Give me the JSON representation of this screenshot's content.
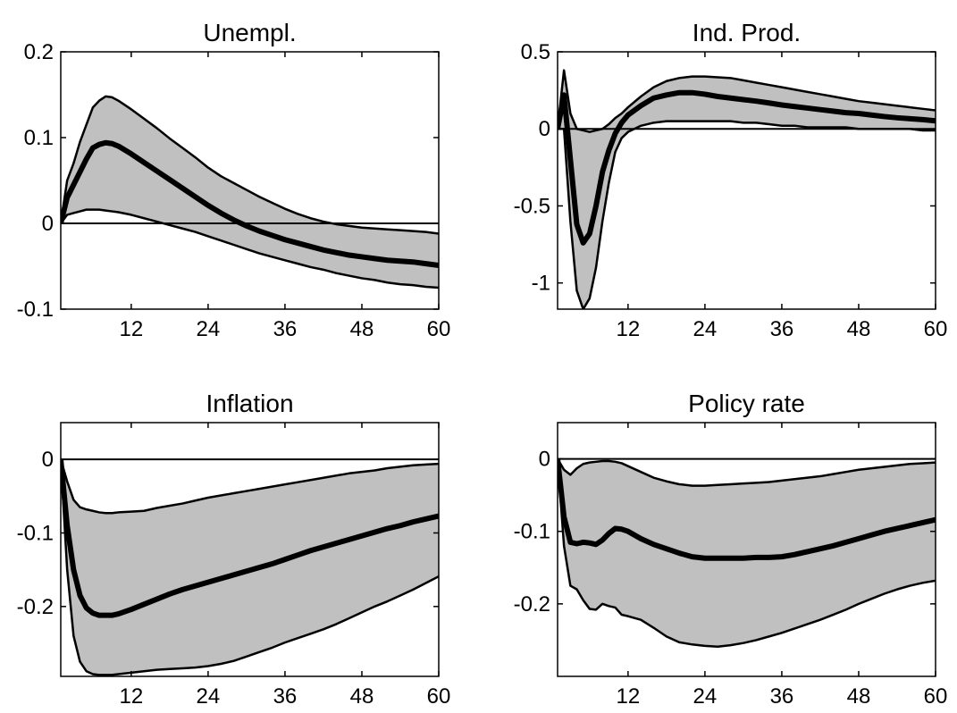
{
  "colors": {
    "band_fill": "#c0c0c0",
    "line": "#000000",
    "background": "#ffffff"
  },
  "chart_data": [
    {
      "type": "area",
      "title": "Unempl.",
      "xlim": [
        1,
        60
      ],
      "ylim": [
        -0.1,
        0.2
      ],
      "xticks": [
        12,
        24,
        36,
        48,
        60
      ],
      "yticks": [
        -0.1,
        0,
        0.1,
        0.2
      ],
      "ytick_labels": [
        "-0.1",
        "0",
        "0.1",
        "0.2"
      ],
      "zero_line": true,
      "series": [
        {
          "role": "median",
          "x": [
            1,
            2,
            3,
            4,
            5,
            6,
            7,
            8,
            9,
            10,
            12,
            14,
            16,
            18,
            20,
            22,
            24,
            26,
            28,
            30,
            32,
            34,
            36,
            38,
            40,
            42,
            44,
            46,
            48,
            50,
            52,
            54,
            56,
            58,
            60
          ],
          "y": [
            0.0,
            0.03,
            0.045,
            0.06,
            0.075,
            0.088,
            0.092,
            0.094,
            0.093,
            0.09,
            0.081,
            0.071,
            0.061,
            0.051,
            0.041,
            0.031,
            0.021,
            0.012,
            0.004,
            -0.003,
            -0.009,
            -0.014,
            -0.019,
            -0.023,
            -0.027,
            -0.031,
            -0.034,
            -0.037,
            -0.039,
            -0.041,
            -0.043,
            -0.044,
            -0.045,
            -0.047,
            -0.049
          ]
        },
        {
          "role": "upper",
          "x": [
            1,
            2,
            3,
            4,
            5,
            6,
            7,
            8,
            9,
            10,
            12,
            14,
            16,
            18,
            20,
            22,
            24,
            26,
            28,
            30,
            32,
            34,
            36,
            38,
            40,
            42,
            44,
            46,
            48,
            50,
            52,
            54,
            56,
            58,
            60
          ],
          "y": [
            0.0,
            0.05,
            0.07,
            0.095,
            0.115,
            0.135,
            0.143,
            0.148,
            0.147,
            0.143,
            0.133,
            0.122,
            0.111,
            0.099,
            0.088,
            0.077,
            0.065,
            0.055,
            0.047,
            0.039,
            0.031,
            0.024,
            0.017,
            0.011,
            0.006,
            0.002,
            -0.001,
            -0.003,
            -0.005,
            -0.006,
            -0.007,
            -0.008,
            -0.009,
            -0.01,
            -0.012
          ]
        },
        {
          "role": "lower",
          "x": [
            1,
            2,
            3,
            4,
            5,
            6,
            7,
            8,
            9,
            10,
            12,
            14,
            16,
            18,
            20,
            22,
            24,
            26,
            28,
            30,
            32,
            34,
            36,
            38,
            40,
            42,
            44,
            46,
            48,
            50,
            52,
            54,
            56,
            58,
            60
          ],
          "y": [
            0.0,
            0.01,
            0.012,
            0.014,
            0.016,
            0.016,
            0.016,
            0.015,
            0.014,
            0.013,
            0.01,
            0.006,
            0.002,
            -0.002,
            -0.006,
            -0.01,
            -0.015,
            -0.02,
            -0.025,
            -0.03,
            -0.035,
            -0.039,
            -0.043,
            -0.047,
            -0.051,
            -0.054,
            -0.058,
            -0.061,
            -0.064,
            -0.066,
            -0.069,
            -0.071,
            -0.072,
            -0.074,
            -0.075
          ]
        }
      ]
    },
    {
      "type": "area",
      "title": "Ind. Prod.",
      "xlim": [
        1,
        60
      ],
      "ylim": [
        -1.17,
        0.5
      ],
      "xticks": [
        12,
        24,
        36,
        48,
        60
      ],
      "yticks": [
        -1,
        -0.5,
        0,
        0.5
      ],
      "ytick_labels": [
        "-1",
        "-0.5",
        "0",
        "0.5"
      ],
      "zero_line": true,
      "series": [
        {
          "role": "median",
          "x": [
            1,
            2,
            3,
            4,
            5,
            6,
            7,
            8,
            9,
            10,
            11,
            12,
            14,
            16,
            18,
            20,
            22,
            24,
            26,
            28,
            30,
            32,
            34,
            36,
            38,
            40,
            42,
            44,
            46,
            48,
            50,
            52,
            54,
            56,
            58,
            60
          ],
          "y": [
            0.0,
            0.22,
            -0.2,
            -0.62,
            -0.74,
            -0.68,
            -0.5,
            -0.28,
            -0.14,
            -0.03,
            0.04,
            0.09,
            0.15,
            0.2,
            0.22,
            0.235,
            0.235,
            0.225,
            0.21,
            0.2,
            0.19,
            0.18,
            0.168,
            0.155,
            0.145,
            0.135,
            0.125,
            0.115,
            0.105,
            0.1,
            0.09,
            0.08,
            0.072,
            0.066,
            0.06,
            0.052
          ]
        },
        {
          "role": "upper",
          "x": [
            1,
            2,
            3,
            4,
            5,
            6,
            7,
            8,
            9,
            10,
            11,
            12,
            14,
            16,
            18,
            20,
            22,
            24,
            26,
            28,
            30,
            32,
            34,
            36,
            38,
            40,
            42,
            44,
            46,
            48,
            50,
            52,
            54,
            56,
            58,
            60
          ],
          "y": [
            0.0,
            0.38,
            0.1,
            0.0,
            -0.01,
            -0.02,
            -0.01,
            0.0,
            0.03,
            0.07,
            0.1,
            0.14,
            0.21,
            0.27,
            0.31,
            0.33,
            0.34,
            0.34,
            0.335,
            0.33,
            0.315,
            0.3,
            0.285,
            0.27,
            0.255,
            0.24,
            0.225,
            0.21,
            0.195,
            0.18,
            0.17,
            0.16,
            0.15,
            0.14,
            0.13,
            0.12
          ]
        },
        {
          "role": "lower",
          "x": [
            1,
            2,
            3,
            4,
            5,
            6,
            7,
            8,
            9,
            10,
            11,
            12,
            14,
            16,
            18,
            20,
            22,
            24,
            26,
            28,
            30,
            32,
            34,
            36,
            38,
            40,
            42,
            44,
            46,
            48,
            50,
            52,
            54,
            56,
            58,
            60
          ],
          "y": [
            0.0,
            0.0,
            -0.6,
            -1.05,
            -1.17,
            -1.1,
            -0.9,
            -0.6,
            -0.35,
            -0.15,
            -0.06,
            -0.02,
            0.02,
            0.04,
            0.05,
            0.05,
            0.05,
            0.05,
            0.05,
            0.05,
            0.04,
            0.04,
            0.03,
            0.02,
            0.02,
            0.01,
            0.01,
            0.01,
            0.01,
            0.0,
            0.0,
            0.0,
            0.0,
            0.0,
            -0.01,
            -0.01
          ]
        }
      ]
    },
    {
      "type": "area",
      "title": "Inflation",
      "xlim": [
        1,
        60
      ],
      "ylim": [
        -0.295,
        0.05
      ],
      "xticks": [
        12,
        24,
        36,
        48,
        60
      ],
      "yticks": [
        -0.2,
        -0.1,
        0
      ],
      "ytick_labels": [
        "-0.2",
        "-0.1",
        "0"
      ],
      "zero_line": true,
      "series": [
        {
          "role": "median",
          "x": [
            1,
            2,
            3,
            4,
            5,
            6,
            7,
            8,
            9,
            10,
            12,
            14,
            16,
            18,
            20,
            22,
            24,
            26,
            28,
            30,
            32,
            34,
            36,
            38,
            40,
            42,
            44,
            46,
            48,
            50,
            52,
            54,
            56,
            58,
            60
          ],
          "y": [
            0.0,
            -0.09,
            -0.15,
            -0.185,
            -0.202,
            -0.209,
            -0.212,
            -0.212,
            -0.212,
            -0.21,
            -0.204,
            -0.197,
            -0.19,
            -0.183,
            -0.177,
            -0.172,
            -0.167,
            -0.162,
            -0.157,
            -0.152,
            -0.147,
            -0.142,
            -0.136,
            -0.13,
            -0.124,
            -0.119,
            -0.114,
            -0.109,
            -0.104,
            -0.099,
            -0.094,
            -0.09,
            -0.085,
            -0.081,
            -0.077
          ]
        },
        {
          "role": "upper",
          "x": [
            1,
            2,
            3,
            4,
            5,
            6,
            7,
            8,
            9,
            10,
            12,
            14,
            16,
            18,
            20,
            22,
            24,
            26,
            28,
            30,
            32,
            34,
            36,
            38,
            40,
            42,
            44,
            46,
            48,
            50,
            52,
            54,
            56,
            58,
            60
          ],
          "y": [
            0.0,
            -0.03,
            -0.055,
            -0.065,
            -0.068,
            -0.07,
            -0.072,
            -0.073,
            -0.073,
            -0.072,
            -0.071,
            -0.07,
            -0.066,
            -0.063,
            -0.06,
            -0.056,
            -0.052,
            -0.049,
            -0.046,
            -0.043,
            -0.04,
            -0.037,
            -0.034,
            -0.031,
            -0.028,
            -0.025,
            -0.022,
            -0.019,
            -0.017,
            -0.015,
            -0.012,
            -0.01,
            -0.008,
            -0.007,
            -0.006
          ]
        },
        {
          "role": "lower",
          "x": [
            1,
            2,
            3,
            4,
            5,
            6,
            7,
            8,
            9,
            10,
            12,
            14,
            16,
            18,
            20,
            22,
            24,
            26,
            28,
            30,
            32,
            34,
            36,
            38,
            40,
            42,
            44,
            46,
            48,
            50,
            52,
            54,
            56,
            58,
            60
          ],
          "y": [
            0.0,
            -0.15,
            -0.24,
            -0.275,
            -0.288,
            -0.292,
            -0.293,
            -0.293,
            -0.293,
            -0.292,
            -0.29,
            -0.288,
            -0.286,
            -0.285,
            -0.284,
            -0.283,
            -0.281,
            -0.278,
            -0.274,
            -0.268,
            -0.262,
            -0.256,
            -0.249,
            -0.243,
            -0.237,
            -0.231,
            -0.224,
            -0.216,
            -0.208,
            -0.2,
            -0.193,
            -0.185,
            -0.177,
            -0.168,
            -0.159
          ]
        }
      ]
    },
    {
      "type": "area",
      "title": "Policy rate",
      "xlim": [
        1,
        60
      ],
      "ylim": [
        -0.3,
        0.05
      ],
      "xticks": [
        12,
        24,
        36,
        48,
        60
      ],
      "yticks": [
        -0.2,
        -0.1,
        0
      ],
      "ytick_labels": [
        "-0.2",
        "-0.1",
        "0"
      ],
      "zero_line": true,
      "series": [
        {
          "role": "median",
          "x": [
            1,
            2,
            3,
            4,
            5,
            6,
            7,
            8,
            9,
            10,
            11,
            12,
            14,
            16,
            18,
            20,
            22,
            24,
            26,
            28,
            30,
            32,
            34,
            36,
            38,
            40,
            42,
            44,
            46,
            48,
            50,
            52,
            54,
            56,
            58,
            60
          ],
          "y": [
            0.0,
            -0.08,
            -0.115,
            -0.117,
            -0.115,
            -0.116,
            -0.118,
            -0.112,
            -0.103,
            -0.096,
            -0.097,
            -0.1,
            -0.11,
            -0.118,
            -0.124,
            -0.13,
            -0.135,
            -0.137,
            -0.137,
            -0.137,
            -0.137,
            -0.136,
            -0.136,
            -0.135,
            -0.132,
            -0.128,
            -0.124,
            -0.12,
            -0.115,
            -0.11,
            -0.105,
            -0.1,
            -0.096,
            -0.092,
            -0.088,
            -0.084
          ]
        },
        {
          "role": "upper",
          "x": [
            1,
            2,
            3,
            4,
            5,
            6,
            7,
            8,
            9,
            10,
            11,
            12,
            14,
            16,
            18,
            20,
            22,
            24,
            26,
            28,
            30,
            32,
            34,
            36,
            38,
            40,
            42,
            44,
            46,
            48,
            50,
            52,
            54,
            56,
            58,
            60
          ],
          "y": [
            0.0,
            -0.015,
            -0.022,
            -0.013,
            -0.007,
            -0.005,
            -0.004,
            -0.003,
            -0.003,
            -0.004,
            -0.006,
            -0.01,
            -0.018,
            -0.026,
            -0.031,
            -0.035,
            -0.037,
            -0.037,
            -0.036,
            -0.035,
            -0.034,
            -0.033,
            -0.032,
            -0.03,
            -0.028,
            -0.026,
            -0.024,
            -0.021,
            -0.018,
            -0.015,
            -0.013,
            -0.011,
            -0.009,
            -0.007,
            -0.006,
            -0.005
          ]
        },
        {
          "role": "lower",
          "x": [
            1,
            2,
            3,
            4,
            5,
            6,
            7,
            8,
            9,
            10,
            11,
            12,
            14,
            16,
            18,
            20,
            22,
            24,
            26,
            28,
            30,
            32,
            34,
            36,
            38,
            40,
            42,
            44,
            46,
            48,
            50,
            52,
            54,
            56,
            58,
            60
          ],
          "y": [
            0.0,
            -0.12,
            -0.175,
            -0.18,
            -0.195,
            -0.207,
            -0.208,
            -0.2,
            -0.203,
            -0.205,
            -0.215,
            -0.217,
            -0.222,
            -0.233,
            -0.245,
            -0.253,
            -0.256,
            -0.258,
            -0.259,
            -0.257,
            -0.254,
            -0.25,
            -0.245,
            -0.24,
            -0.234,
            -0.228,
            -0.222,
            -0.215,
            -0.208,
            -0.2,
            -0.193,
            -0.186,
            -0.18,
            -0.175,
            -0.171,
            -0.168
          ]
        }
      ]
    }
  ]
}
